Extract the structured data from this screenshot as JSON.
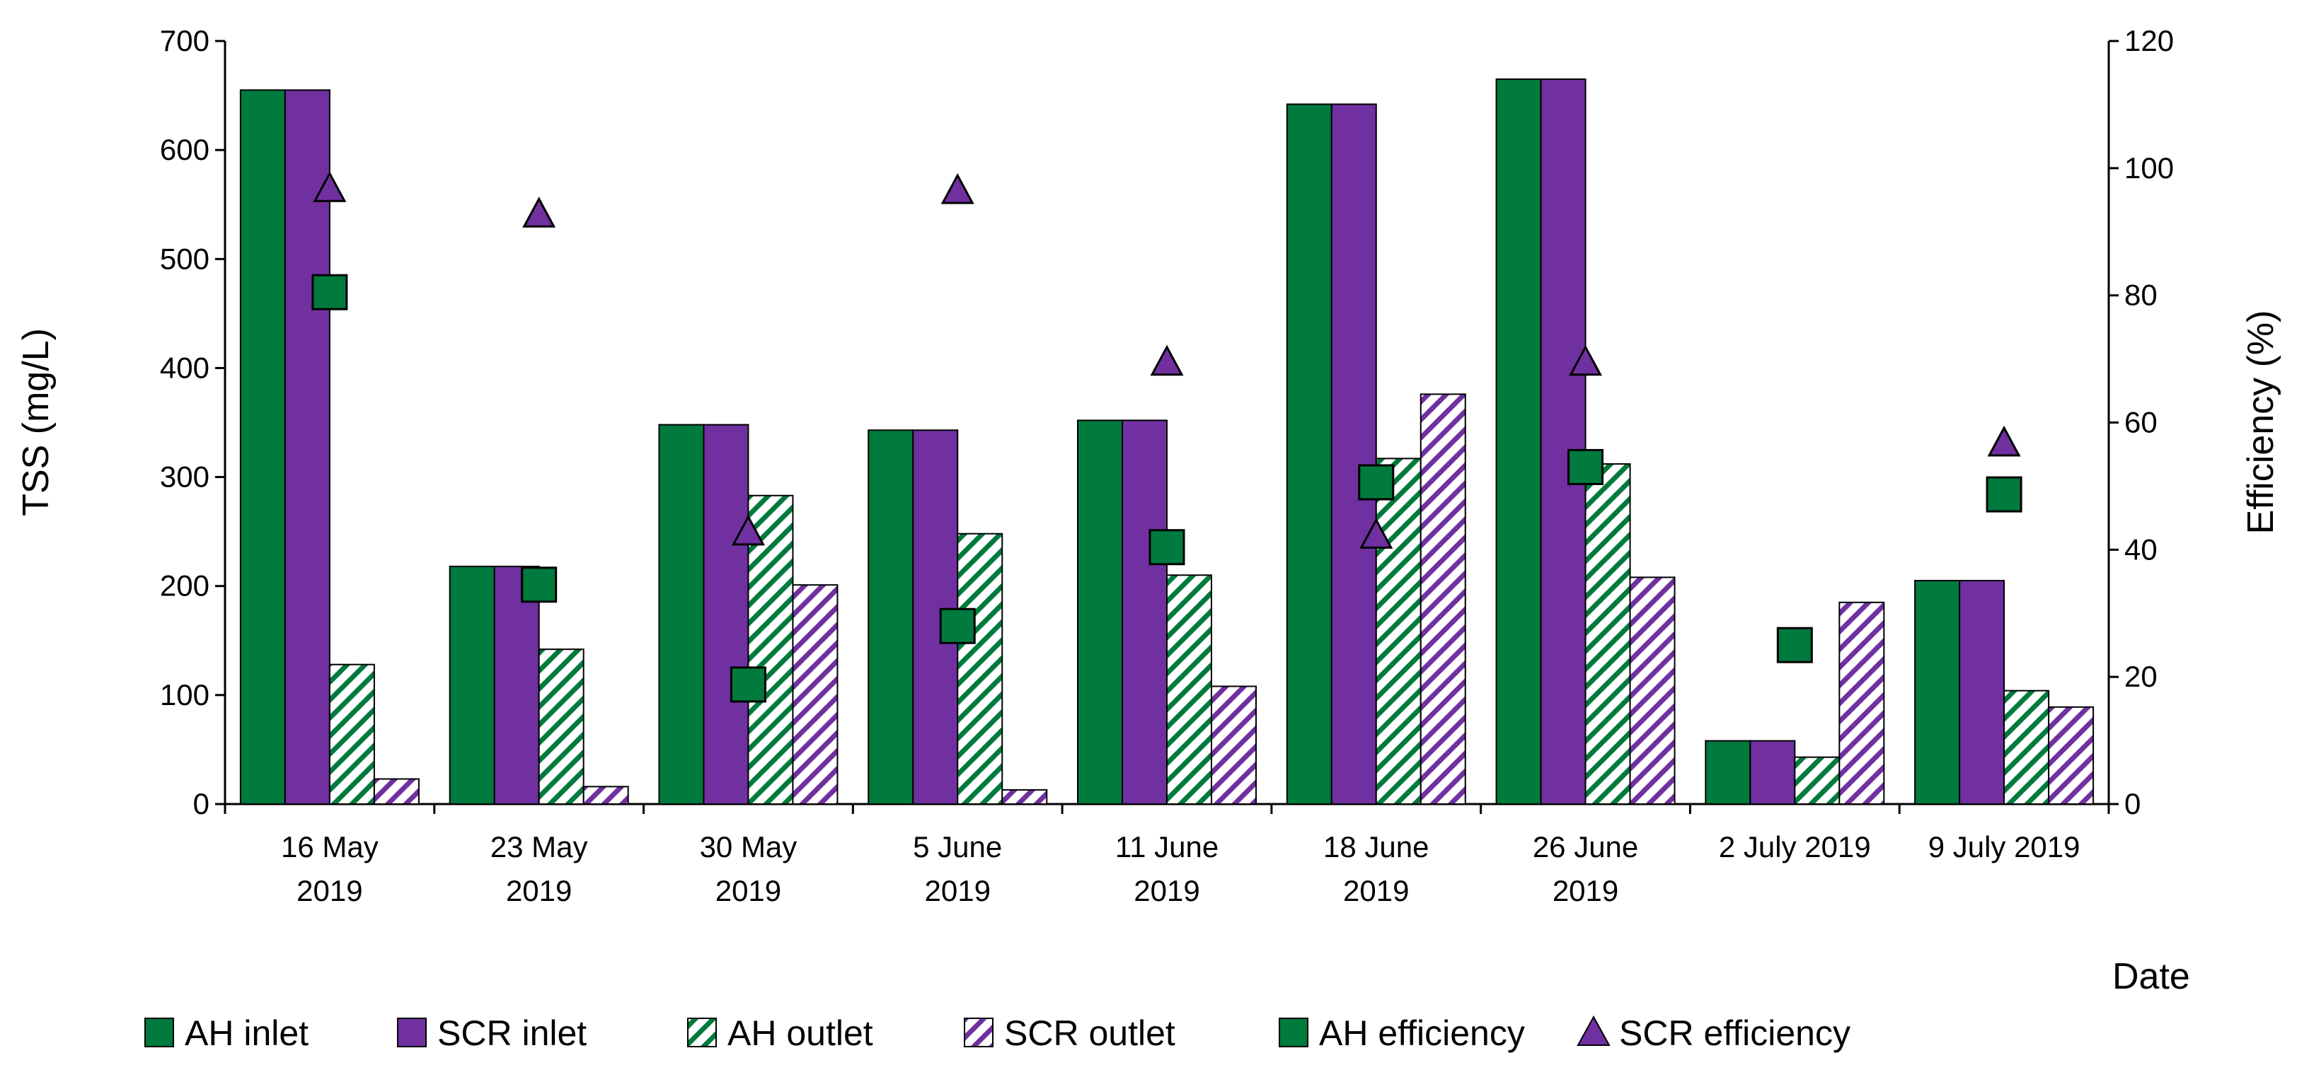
{
  "chart_data": {
    "type": "bar",
    "title": "",
    "xlabel": "Date",
    "ylabel": "TSS (mg/L)",
    "y2label": "Efficiency (%)",
    "ylim": [
      0,
      700
    ],
    "y2lim": [
      0,
      120
    ],
    "yticks": [
      0,
      100,
      200,
      300,
      400,
      500,
      600,
      700
    ],
    "y2ticks": [
      0,
      20,
      40,
      60,
      80,
      100,
      120
    ],
    "categories": [
      [
        "16 May",
        "2019"
      ],
      [
        "23 May",
        "2019"
      ],
      [
        "30 May",
        "2019"
      ],
      [
        "5 June",
        "2019"
      ],
      [
        "11 June",
        "2019"
      ],
      [
        "18 June",
        "2019"
      ],
      [
        "26 June",
        "2019"
      ],
      [
        "2 July 2019"
      ],
      [
        "9 July 2019"
      ]
    ],
    "series": [
      {
        "name": "AH inlet",
        "kind": "bar",
        "axis": "left",
        "pattern": "solid",
        "color": "#007A3D",
        "values": [
          655,
          218,
          348,
          343,
          352,
          642,
          665,
          58,
          205
        ]
      },
      {
        "name": "SCR inlet",
        "kind": "bar",
        "axis": "left",
        "pattern": "solid",
        "color": "#7030A0",
        "values": [
          655,
          218,
          348,
          343,
          352,
          642,
          665,
          58,
          205
        ]
      },
      {
        "name": "AH outlet",
        "kind": "bar",
        "axis": "left",
        "pattern": "hatch",
        "color": "#007A3D",
        "values": [
          128,
          142,
          283,
          248,
          210,
          317,
          312,
          43,
          104
        ]
      },
      {
        "name": "SCR outlet",
        "kind": "bar",
        "axis": "left",
        "pattern": "hatch",
        "color": "#7030A0",
        "values": [
          23,
          16,
          201,
          13,
          108,
          376,
          208,
          185,
          89
        ]
      },
      {
        "name": "AH efficiency",
        "kind": "marker",
        "marker": "square",
        "axis": "right",
        "color": "#007A3D",
        "values": [
          80.5,
          34.5,
          18.8,
          28,
          40.4,
          50.6,
          53,
          25,
          48.7
        ]
      },
      {
        "name": "SCR efficiency",
        "kind": "marker",
        "marker": "triangle",
        "axis": "right",
        "color": "#7030A0",
        "values": [
          96.5,
          92.5,
          42.5,
          96.2,
          69.2,
          42,
          69.2,
          null,
          56.5
        ]
      }
    ],
    "legend": "bottom"
  }
}
